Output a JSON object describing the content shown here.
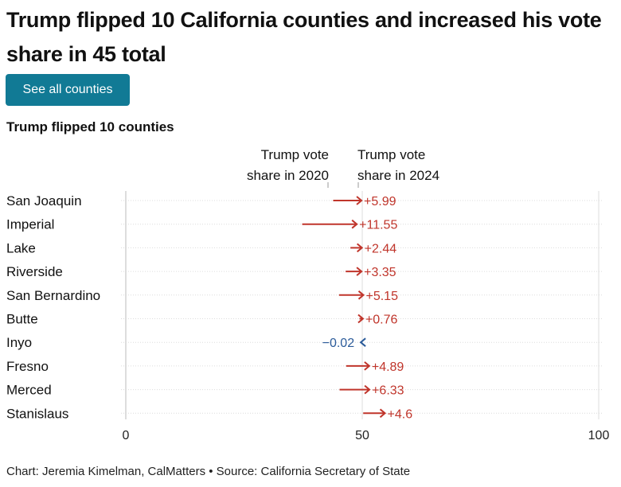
{
  "headline": "Trump flipped 10 California counties and increased his vote share in 45 total",
  "button_label": "See all counties",
  "credit": "Chart: Jeremia Kimelman, CalMatters • Source: California Secretary of State",
  "colors": {
    "increase": "#c0352b",
    "decrease": "#2b5b9a",
    "button": "#117a95",
    "grid": "#dddddd"
  },
  "chart_data": {
    "type": "arrow",
    "title": "Trump flipped 10 counties",
    "column_headers": {
      "left": [
        "Trump vote",
        "share in 2020"
      ],
      "right": [
        "Trump vote",
        "share in 2024"
      ]
    },
    "xlim": [
      0,
      100
    ],
    "x_ticks": [
      "0",
      "50",
      "100"
    ],
    "rows": [
      {
        "county": "San Joaquin",
        "start": 43.85,
        "end": 49.84,
        "change": 5.99,
        "label": "+5.99"
      },
      {
        "county": "Imperial",
        "start": 37.3,
        "end": 48.85,
        "change": 11.55,
        "label": "+11.55"
      },
      {
        "county": "Lake",
        "start": 47.5,
        "end": 49.94,
        "change": 2.44,
        "label": "+2.44"
      },
      {
        "county": "Riverside",
        "start": 46.5,
        "end": 49.85,
        "change": 3.35,
        "label": "+3.35"
      },
      {
        "county": "San Bernardino",
        "start": 45.1,
        "end": 50.25,
        "change": 5.15,
        "label": "+5.15"
      },
      {
        "county": "Butte",
        "start": 49.4,
        "end": 50.16,
        "change": 0.76,
        "label": "+0.76"
      },
      {
        "county": "Inyo",
        "start": 49.7,
        "end": 49.68,
        "change": -0.02,
        "label": "−0.02"
      },
      {
        "county": "Fresno",
        "start": 46.6,
        "end": 51.49,
        "change": 4.89,
        "label": "+4.89"
      },
      {
        "county": "Merced",
        "start": 45.2,
        "end": 51.53,
        "change": 6.33,
        "label": "+6.33"
      },
      {
        "county": "Stanislaus",
        "start": 50.2,
        "end": 54.8,
        "change": 4.6,
        "label": "+4.6"
      }
    ]
  }
}
